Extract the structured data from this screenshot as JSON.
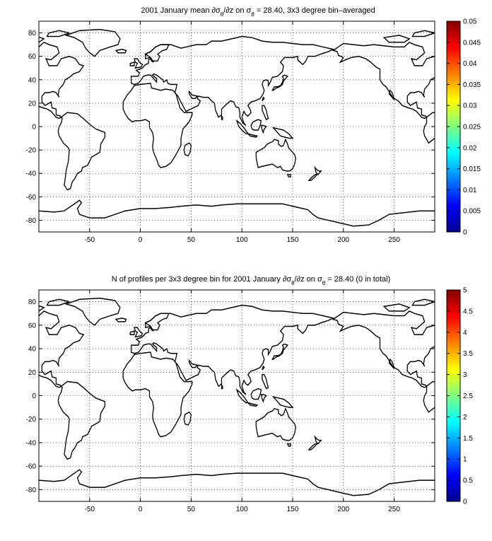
{
  "panels": [
    {
      "title_pre": "2001 January mean ",
      "title_mid": "∂σ",
      "title_sub1": "θ",
      "title_mid2": "/∂z on σ",
      "title_sub2": "θ",
      "title_post": " = 28.40, 3x3 degree bin–averaged",
      "x_ticks": [
        "-50",
        "0",
        "50",
        "100",
        "150",
        "200",
        "250"
      ],
      "y_ticks": [
        "80",
        "60",
        "40",
        "20",
        "0",
        "-20",
        "-40",
        "-60",
        "-80"
      ],
      "colorbar_ticks": [
        "0.05",
        "0.045",
        "0.04",
        "0.035",
        "0.03",
        "0.025",
        "0.02",
        "0.015",
        "0.01",
        "0.005",
        "0"
      ]
    },
    {
      "title_pre": "N of profiles per 3x3 degree bin for 2001 January ",
      "title_mid": "∂σ",
      "title_sub1": "θ",
      "title_mid2": "/∂z on σ",
      "title_sub2": "θ",
      "title_post": " = 28.40 (0 in total)",
      "x_ticks": [
        "-50",
        "0",
        "50",
        "100",
        "150",
        "200",
        "250"
      ],
      "y_ticks": [
        "80",
        "60",
        "40",
        "20",
        "0",
        "-20",
        "-40",
        "-60",
        "-80"
      ],
      "colorbar_ticks": [
        "5",
        "4.5",
        "4",
        "3.5",
        "3",
        "2.5",
        "2",
        "1.5",
        "1",
        "0.5",
        "0"
      ]
    }
  ],
  "map": {
    "lon_range": [
      -100,
      290
    ],
    "lat_range": [
      -90,
      90
    ],
    "grid": "dotted"
  },
  "colormap": "jet"
}
